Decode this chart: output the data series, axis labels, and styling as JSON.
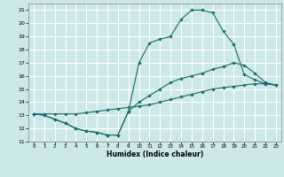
{
  "title": "",
  "xlabel": "Humidex (Indice chaleur)",
  "ylabel": "",
  "xlim": [
    -0.5,
    23.5
  ],
  "ylim": [
    11,
    21.5
  ],
  "xticks": [
    0,
    1,
    2,
    3,
    4,
    5,
    6,
    7,
    8,
    9,
    10,
    11,
    12,
    13,
    14,
    15,
    16,
    17,
    18,
    19,
    20,
    21,
    22,
    23
  ],
  "yticks": [
    11,
    12,
    13,
    14,
    15,
    16,
    17,
    18,
    19,
    20,
    21
  ],
  "bg_color": "#cce8e8",
  "line_color": "#1a6b6b",
  "grid_color": "#ffffff",
  "lines": [
    {
      "x": [
        0,
        1,
        2,
        3,
        4,
        5,
        6,
        7,
        8,
        9,
        10,
        11,
        12,
        13,
        14,
        15,
        16,
        17,
        18,
        19,
        20,
        21,
        22,
        23
      ],
      "y": [
        13.1,
        13.0,
        12.7,
        12.4,
        12.0,
        11.8,
        11.7,
        11.5,
        11.5,
        13.3,
        17.0,
        18.5,
        18.8,
        19.0,
        20.3,
        21.0,
        21.0,
        20.8,
        19.4,
        18.4,
        16.1,
        15.7,
        15.4,
        15.3
      ]
    },
    {
      "x": [
        0,
        1,
        2,
        3,
        4,
        5,
        6,
        7,
        8,
        9,
        10,
        11,
        12,
        13,
        14,
        15,
        16,
        17,
        18,
        19,
        20,
        21,
        22,
        23
      ],
      "y": [
        13.1,
        13.0,
        12.7,
        12.4,
        12.0,
        11.8,
        11.7,
        11.5,
        11.5,
        13.3,
        14.0,
        14.5,
        15.0,
        15.5,
        15.8,
        16.0,
        16.2,
        16.5,
        16.7,
        17.0,
        16.8,
        16.2,
        15.5,
        15.3
      ]
    },
    {
      "x": [
        0,
        1,
        2,
        3,
        4,
        5,
        6,
        7,
        8,
        9,
        10,
        11,
        12,
        13,
        14,
        15,
        16,
        17,
        18,
        19,
        20,
        21,
        22,
        23
      ],
      "y": [
        13.1,
        13.1,
        13.1,
        13.1,
        13.1,
        13.2,
        13.3,
        13.4,
        13.5,
        13.6,
        13.7,
        13.8,
        14.0,
        14.2,
        14.4,
        14.6,
        14.8,
        15.0,
        15.1,
        15.2,
        15.3,
        15.4,
        15.4,
        15.3
      ]
    }
  ]
}
